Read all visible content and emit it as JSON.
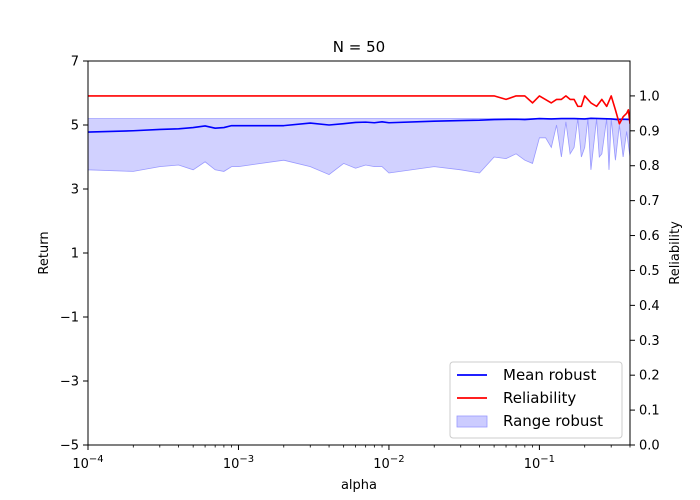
{
  "chart_data": {
    "type": "line",
    "title": "N = 50",
    "xlabel": "alpha",
    "ylabel_left": "Return",
    "ylabel_right": "Reliability",
    "xscale": "log",
    "xlim": [
      0.0001,
      0.4
    ],
    "ylim_left": [
      -5,
      7
    ],
    "ylim_right": [
      0,
      1.1
    ],
    "x_ticks": [
      {
        "value": 0.0001,
        "base": "10",
        "exp": "−4"
      },
      {
        "value": 0.001,
        "base": "10",
        "exp": "−3"
      },
      {
        "value": 0.01,
        "base": "10",
        "exp": "−2"
      },
      {
        "value": 0.1,
        "base": "10",
        "exp": "−1"
      }
    ],
    "y_ticks_left": [
      "7",
      "5",
      "3",
      "1",
      "−1",
      "−3",
      "−5"
    ],
    "y_ticks_right": [
      "1.0",
      "0.9",
      "0.8",
      "0.7",
      "0.6",
      "0.5",
      "0.4",
      "0.3",
      "0.2",
      "0.1",
      "0.0"
    ],
    "legend_placement": "lower-right",
    "grid": false,
    "series": [
      {
        "name": "Mean robust",
        "axis": "left",
        "color": "#0000ff",
        "points": [
          [
            0.0001,
            4.78
          ],
          [
            0.0002,
            4.82
          ],
          [
            0.0003,
            4.86
          ],
          [
            0.0004,
            4.88
          ],
          [
            0.0005,
            4.92
          ],
          [
            0.0006,
            4.97
          ],
          [
            0.0007,
            4.9
          ],
          [
            0.0008,
            4.92
          ],
          [
            0.0009,
            4.98
          ],
          [
            0.001,
            4.98
          ],
          [
            0.002,
            4.98
          ],
          [
            0.003,
            5.06
          ],
          [
            0.004,
            5.0
          ],
          [
            0.005,
            5.04
          ],
          [
            0.006,
            5.08
          ],
          [
            0.007,
            5.09
          ],
          [
            0.008,
            5.07
          ],
          [
            0.009,
            5.1
          ],
          [
            0.01,
            5.07
          ],
          [
            0.02,
            5.12
          ],
          [
            0.03,
            5.14
          ],
          [
            0.04,
            5.15
          ],
          [
            0.05,
            5.17
          ],
          [
            0.07,
            5.18
          ],
          [
            0.08,
            5.17
          ],
          [
            0.1,
            5.2
          ],
          [
            0.12,
            5.19
          ],
          [
            0.14,
            5.2
          ],
          [
            0.17,
            5.2
          ],
          [
            0.2,
            5.19
          ],
          [
            0.22,
            5.21
          ],
          [
            0.25,
            5.2
          ],
          [
            0.3,
            5.19
          ],
          [
            0.33,
            5.17
          ],
          [
            0.36,
            5.18
          ],
          [
            0.4,
            5.17
          ]
        ]
      },
      {
        "name": "Reliability",
        "axis": "right",
        "color": "#ff0000",
        "points": [
          [
            0.0001,
            1.0
          ],
          [
            0.05,
            1.0
          ],
          [
            0.06,
            0.99
          ],
          [
            0.07,
            1.0
          ],
          [
            0.08,
            1.0
          ],
          [
            0.09,
            0.98
          ],
          [
            0.1,
            1.0
          ],
          [
            0.12,
            0.98
          ],
          [
            0.13,
            0.99
          ],
          [
            0.14,
            0.99
          ],
          [
            0.15,
            1.0
          ],
          [
            0.16,
            0.99
          ],
          [
            0.17,
            0.99
          ],
          [
            0.18,
            0.97
          ],
          [
            0.19,
            0.97
          ],
          [
            0.2,
            1.0
          ],
          [
            0.22,
            0.98
          ],
          [
            0.24,
            0.97
          ],
          [
            0.26,
            0.99
          ],
          [
            0.28,
            0.97
          ],
          [
            0.3,
            1.0
          ],
          [
            0.32,
            0.96
          ],
          [
            0.34,
            0.92
          ],
          [
            0.36,
            0.94
          ],
          [
            0.38,
            0.95
          ],
          [
            0.39,
            0.96
          ],
          [
            0.4,
            0.92
          ]
        ]
      }
    ],
    "band": {
      "name": "Range robust",
      "axis": "left",
      "fill": "#ccccff",
      "edge": "#9999ff",
      "upper": 5.2,
      "lower_points": [
        [
          0.0001,
          3.6
        ],
        [
          0.0002,
          3.55
        ],
        [
          0.0003,
          3.7
        ],
        [
          0.0004,
          3.75
        ],
        [
          0.0005,
          3.6
        ],
        [
          0.0006,
          3.85
        ],
        [
          0.0007,
          3.6
        ],
        [
          0.0008,
          3.55
        ],
        [
          0.0009,
          3.7
        ],
        [
          0.001,
          3.7
        ],
        [
          0.002,
          3.9
        ],
        [
          0.003,
          3.7
        ],
        [
          0.004,
          3.45
        ],
        [
          0.005,
          3.8
        ],
        [
          0.006,
          3.65
        ],
        [
          0.007,
          3.75
        ],
        [
          0.008,
          3.7
        ],
        [
          0.009,
          3.7
        ],
        [
          0.01,
          3.5
        ],
        [
          0.02,
          3.7
        ],
        [
          0.03,
          3.6
        ],
        [
          0.04,
          3.5
        ],
        [
          0.05,
          4.0
        ],
        [
          0.06,
          3.95
        ],
        [
          0.07,
          4.1
        ],
        [
          0.08,
          3.9
        ],
        [
          0.09,
          3.8
        ],
        [
          0.1,
          4.6
        ],
        [
          0.11,
          4.6
        ],
        [
          0.12,
          4.3
        ],
        [
          0.13,
          5.0
        ],
        [
          0.14,
          4.0
        ],
        [
          0.15,
          5.1
        ],
        [
          0.16,
          4.1
        ],
        [
          0.17,
          4.3
        ],
        [
          0.18,
          5.2
        ],
        [
          0.19,
          4.0
        ],
        [
          0.2,
          4.3
        ],
        [
          0.21,
          5.2
        ],
        [
          0.22,
          3.6
        ],
        [
          0.24,
          5.2
        ],
        [
          0.25,
          4.0
        ],
        [
          0.26,
          4.1
        ],
        [
          0.28,
          5.2
        ],
        [
          0.29,
          3.6
        ],
        [
          0.3,
          5.2
        ],
        [
          0.32,
          3.9
        ],
        [
          0.34,
          5.0
        ],
        [
          0.36,
          4.0
        ],
        [
          0.38,
          4.8
        ],
        [
          0.4,
          4.0
        ]
      ]
    }
  }
}
